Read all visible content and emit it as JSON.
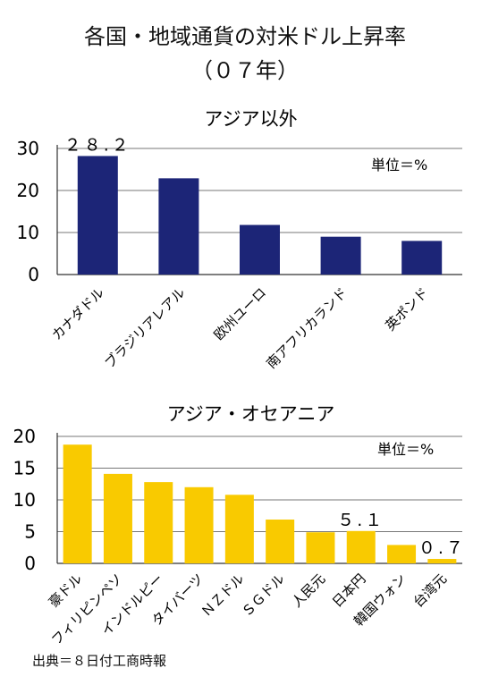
{
  "header": {
    "title": "各国・地域通貨の対米ドル上昇率",
    "subtitle": "（０７年）"
  },
  "source": "出典＝８日付工商時報",
  "chart_data": [
    {
      "type": "bar",
      "title": "アジア以外",
      "unit_note": "単位＝%",
      "categories": [
        "カナダドル",
        "ブラジリアレアル",
        "欧州ユーロ",
        "南アフリカランド",
        "英ポンド"
      ],
      "values": [
        28.2,
        22.9,
        11.8,
        9.0,
        8.0
      ],
      "data_labels": {
        "0": "２８.２"
      },
      "ylim": [
        0,
        30
      ],
      "yticks": [
        0,
        10,
        20,
        30
      ],
      "color": "#1c2577",
      "grid": true
    },
    {
      "type": "bar",
      "title": "アジア・オセアニア",
      "unit_note": "単位＝%",
      "categories": [
        "豪ドル",
        "フィリピンペソ",
        "インドルピー",
        "タイバーツ",
        "ＮＺドル",
        "ＳＧドル",
        "人民元",
        "日本円",
        "韓国ウォン",
        "台湾元"
      ],
      "values": [
        18.7,
        14.1,
        12.8,
        12.0,
        10.8,
        6.9,
        4.9,
        5.1,
        2.9,
        0.7
      ],
      "data_labels": {
        "7": "５.１",
        "9": "０.７"
      },
      "ylim": [
        0,
        20
      ],
      "yticks": [
        0,
        5,
        10,
        15,
        20
      ],
      "color": "#f9ca00",
      "grid": true
    }
  ]
}
